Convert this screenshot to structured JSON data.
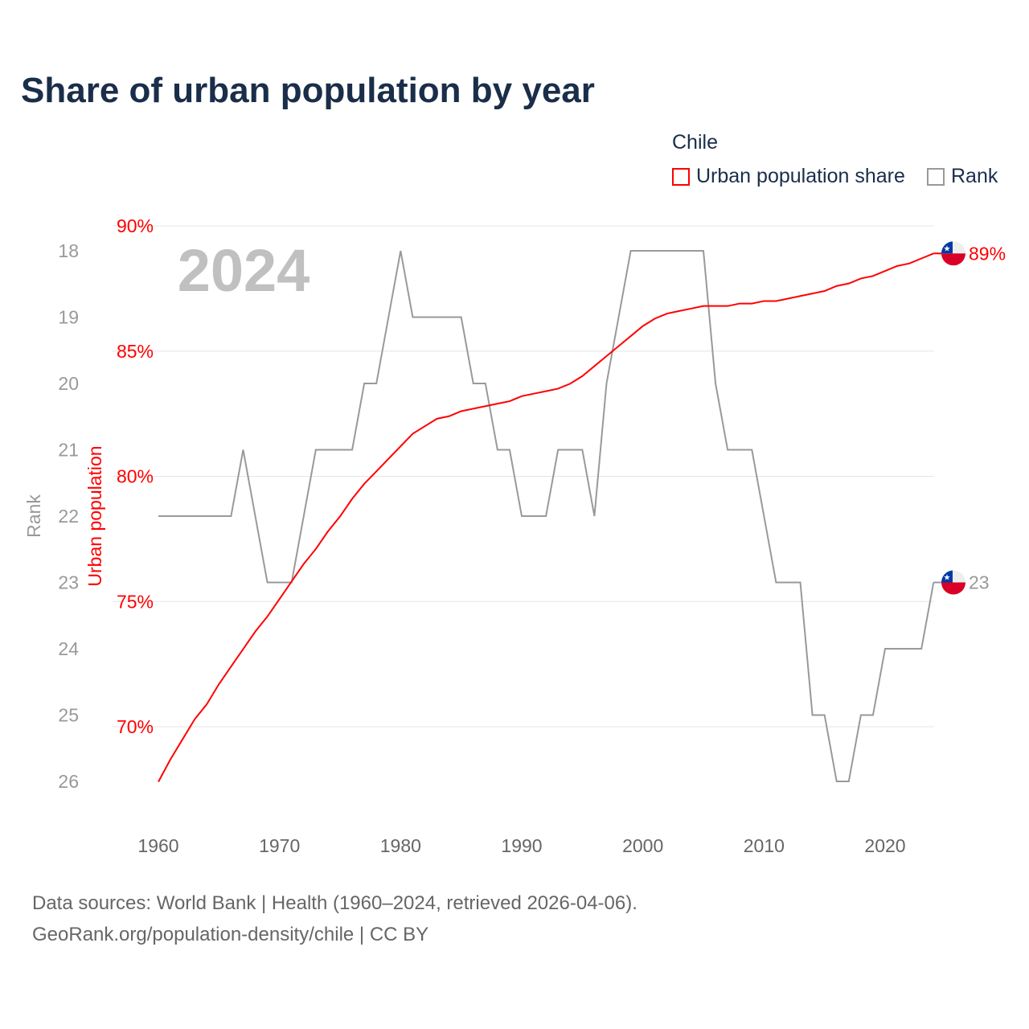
{
  "chart_data": {
    "type": "line",
    "title": "Share of urban population by year",
    "legend_title": "Chile",
    "legend_placement": "top-right",
    "year_label": "2024",
    "x": [
      1960,
      1961,
      1962,
      1963,
      1964,
      1965,
      1966,
      1967,
      1968,
      1969,
      1970,
      1971,
      1972,
      1973,
      1974,
      1975,
      1976,
      1977,
      1978,
      1979,
      1980,
      1981,
      1982,
      1983,
      1984,
      1985,
      1986,
      1987,
      1988,
      1989,
      1990,
      1991,
      1992,
      1993,
      1994,
      1995,
      1996,
      1997,
      1998,
      1999,
      2000,
      2001,
      2002,
      2003,
      2004,
      2005,
      2006,
      2007,
      2008,
      2009,
      2010,
      2011,
      2012,
      2013,
      2014,
      2015,
      2016,
      2017,
      2018,
      2019,
      2020,
      2021,
      2022,
      2023,
      2024
    ],
    "xlim": [
      1960,
      2024
    ],
    "xticks": [
      "1960",
      "1970",
      "1980",
      "1990",
      "2000",
      "2010",
      "2020"
    ],
    "series": [
      {
        "name": "Urban population share",
        "axis": "right-inner",
        "color": "#ff0000",
        "end_label": "89%",
        "values": [
          67.8,
          68.7,
          69.5,
          70.3,
          70.9,
          71.7,
          72.4,
          73.1,
          73.8,
          74.4,
          75.1,
          75.8,
          76.5,
          77.1,
          77.8,
          78.4,
          79.1,
          79.7,
          80.2,
          80.7,
          81.2,
          81.7,
          82.0,
          82.3,
          82.4,
          82.6,
          82.7,
          82.8,
          82.9,
          83.0,
          83.2,
          83.3,
          83.4,
          83.5,
          83.7,
          84.0,
          84.4,
          84.8,
          85.2,
          85.6,
          86.0,
          86.3,
          86.5,
          86.6,
          86.7,
          86.8,
          86.8,
          86.8,
          86.9,
          86.9,
          87.0,
          87.0,
          87.1,
          87.2,
          87.3,
          87.4,
          87.6,
          87.7,
          87.9,
          88.0,
          88.2,
          88.4,
          88.5,
          88.7,
          88.9
        ]
      },
      {
        "name": "Rank",
        "axis": "left",
        "color": "#999999",
        "end_label": "23",
        "values": [
          22,
          22,
          22,
          22,
          22,
          22,
          22,
          21,
          22,
          23,
          23,
          23,
          22,
          21,
          21,
          21,
          21,
          20,
          20,
          19,
          18,
          19,
          19,
          19,
          19,
          19,
          20,
          20,
          21,
          21,
          22,
          22,
          22,
          21,
          21,
          21,
          22,
          20,
          19,
          18,
          18,
          18,
          18,
          18,
          18,
          18,
          20,
          21,
          21,
          21,
          22,
          23,
          23,
          23,
          25,
          25,
          26,
          26,
          25,
          25,
          24,
          24,
          24,
          24,
          23
        ]
      }
    ],
    "y_share": {
      "label": "Urban population",
      "ticks": [
        "70%",
        "75%",
        "80%",
        "85%",
        "90%"
      ],
      "tick_values": [
        70,
        75,
        80,
        85,
        90
      ],
      "ylim": [
        67.5,
        90
      ]
    },
    "y_rank": {
      "label": "Rank",
      "ticks": [
        "18",
        "19",
        "20",
        "21",
        "22",
        "23",
        "24",
        "25",
        "26"
      ],
      "tick_values": [
        18,
        19,
        20,
        21,
        22,
        23,
        24,
        25,
        26
      ],
      "inverted": true
    },
    "grid": true
  },
  "footer": {
    "line1": "Data sources: World Bank | Health (1960–2024, retrieved 2026-04-06).",
    "line2": "GeoRank.org/population-density/chile | CC BY"
  }
}
